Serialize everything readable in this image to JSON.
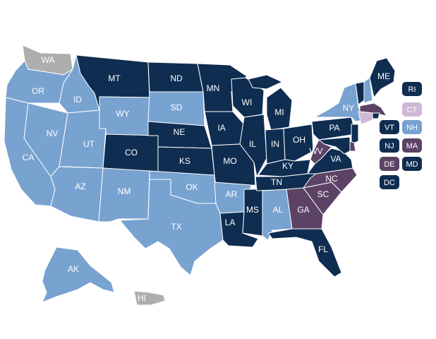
{
  "colors": {
    "navy": "#0f2d51",
    "light_blue": "#78a2d0",
    "gray": "#aeaeae",
    "purple": "#5c4365",
    "lavender": "#cfb7d6",
    "label_light": "#ffffff",
    "label_dark": "#ffffff"
  },
  "states": [
    {
      "abbr": "WA",
      "category": "gray"
    },
    {
      "abbr": "OR",
      "category": "light_blue"
    },
    {
      "abbr": "CA",
      "category": "light_blue"
    },
    {
      "abbr": "ID",
      "category": "light_blue"
    },
    {
      "abbr": "NV",
      "category": "light_blue"
    },
    {
      "abbr": "UT",
      "category": "light_blue"
    },
    {
      "abbr": "AZ",
      "category": "light_blue"
    },
    {
      "abbr": "MT",
      "category": "navy"
    },
    {
      "abbr": "WY",
      "category": "light_blue"
    },
    {
      "abbr": "CO",
      "category": "navy"
    },
    {
      "abbr": "NM",
      "category": "light_blue"
    },
    {
      "abbr": "ND",
      "category": "navy"
    },
    {
      "abbr": "SD",
      "category": "light_blue"
    },
    {
      "abbr": "NE",
      "category": "navy"
    },
    {
      "abbr": "KS",
      "category": "navy"
    },
    {
      "abbr": "OK",
      "category": "light_blue"
    },
    {
      "abbr": "TX",
      "category": "light_blue"
    },
    {
      "abbr": "MN",
      "category": "navy"
    },
    {
      "abbr": "IA",
      "category": "navy"
    },
    {
      "abbr": "MO",
      "category": "navy"
    },
    {
      "abbr": "AR",
      "category": "light_blue"
    },
    {
      "abbr": "LA",
      "category": "navy"
    },
    {
      "abbr": "WI",
      "category": "navy"
    },
    {
      "abbr": "IL",
      "category": "navy"
    },
    {
      "abbr": "MS",
      "category": "navy"
    },
    {
      "abbr": "MI",
      "category": "navy"
    },
    {
      "abbr": "IN",
      "category": "navy"
    },
    {
      "abbr": "OH",
      "category": "navy"
    },
    {
      "abbr": "KY",
      "category": "navy"
    },
    {
      "abbr": "TN",
      "category": "navy"
    },
    {
      "abbr": "AL",
      "category": "light_blue"
    },
    {
      "abbr": "FL",
      "category": "navy"
    },
    {
      "abbr": "GA",
      "category": "purple"
    },
    {
      "abbr": "SC",
      "category": "purple"
    },
    {
      "abbr": "NC",
      "category": "purple"
    },
    {
      "abbr": "VA",
      "category": "navy"
    },
    {
      "abbr": "WV",
      "category": "purple"
    },
    {
      "abbr": "PA",
      "category": "navy"
    },
    {
      "abbr": "NY",
      "category": "light_blue"
    },
    {
      "abbr": "ME",
      "category": "navy"
    },
    {
      "abbr": "AK",
      "category": "light_blue"
    },
    {
      "abbr": "HI",
      "category": "gray"
    },
    {
      "abbr": "VT",
      "category": "navy"
    },
    {
      "abbr": "NH",
      "category": "light_blue"
    },
    {
      "abbr": "MA",
      "category": "purple"
    },
    {
      "abbr": "CT",
      "category": "lavender"
    },
    {
      "abbr": "RI",
      "category": "navy"
    },
    {
      "abbr": "NJ",
      "category": "navy"
    },
    {
      "abbr": "DE",
      "category": "purple"
    },
    {
      "abbr": "MD",
      "category": "navy"
    }
  ],
  "small_state_badges": [
    {
      "abbr": "RI",
      "category": "navy"
    },
    {
      "abbr": "CT",
      "category": "lavender"
    },
    {
      "abbr": "VT",
      "category": "navy"
    },
    {
      "abbr": "NH",
      "category": "light_blue"
    },
    {
      "abbr": "NJ",
      "category": "navy"
    },
    {
      "abbr": "MA",
      "category": "purple"
    },
    {
      "abbr": "DE",
      "category": "purple"
    },
    {
      "abbr": "MD",
      "category": "navy"
    },
    {
      "abbr": "DC",
      "category": "navy"
    }
  ]
}
